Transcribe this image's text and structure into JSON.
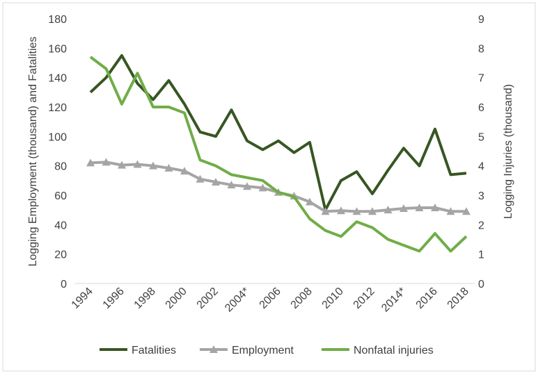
{
  "chart_data": {
    "type": "line",
    "x": [
      "1994",
      "1995",
      "1996",
      "1997",
      "1998",
      "1999",
      "2000",
      "2001",
      "2002",
      "2003",
      "2004*",
      "2005",
      "2006",
      "2007",
      "2008",
      "2009",
      "2010",
      "2011",
      "2012",
      "2013",
      "2014*",
      "2015",
      "2016",
      "2017",
      "2018"
    ],
    "x_tick_labels": [
      "1994",
      "1996",
      "1998",
      "2000",
      "2002",
      "2004*",
      "2006",
      "2008",
      "2010",
      "2012",
      "2014*",
      "2016",
      "2018"
    ],
    "ylabel": "Logging Employment (thousand) and Fatalities",
    "y2label": "Logging Injuries (thousand)",
    "ylim": [
      0,
      180
    ],
    "y2lim": [
      0,
      9
    ],
    "yticks": [
      "0",
      "20",
      "40",
      "60",
      "80",
      "100",
      "120",
      "140",
      "160",
      "180"
    ],
    "y2ticks": [
      "0",
      "1",
      "2",
      "3",
      "4",
      "5",
      "6",
      "7",
      "8",
      "9"
    ],
    "legend_position": "bottom",
    "grid": false,
    "series": [
      {
        "name": "Fatalities",
        "axis": "left",
        "color": "#375623",
        "marker": "none",
        "values": [
          130,
          140,
          155,
          136,
          125,
          138,
          122,
          103,
          100,
          118,
          97,
          91,
          97,
          89,
          96,
          50,
          70,
          76,
          61,
          77,
          92,
          80,
          105,
          74,
          75
        ]
      },
      {
        "name": "Employment",
        "axis": "left",
        "color": "#a5a5a5",
        "marker": "triangle",
        "values": [
          82,
          82.5,
          80.5,
          81,
          80,
          78.5,
          76.5,
          71,
          69,
          67,
          66,
          65,
          62,
          59.5,
          55.5,
          49,
          49.5,
          49,
          49,
          50,
          51,
          51.5,
          51.5,
          49,
          49
        ]
      },
      {
        "name": "Nonfatal injuries",
        "axis": "right",
        "color": "#70ad47",
        "marker": "none",
        "values": [
          7.7,
          7.3,
          6.1,
          7.15,
          6.0,
          6.0,
          5.8,
          4.2,
          4.0,
          3.7,
          3.6,
          3.5,
          3.1,
          2.95,
          2.2,
          1.8,
          1.6,
          2.1,
          1.9,
          1.5,
          1.3,
          1.1,
          1.7,
          1.1,
          1.6
        ]
      }
    ]
  }
}
